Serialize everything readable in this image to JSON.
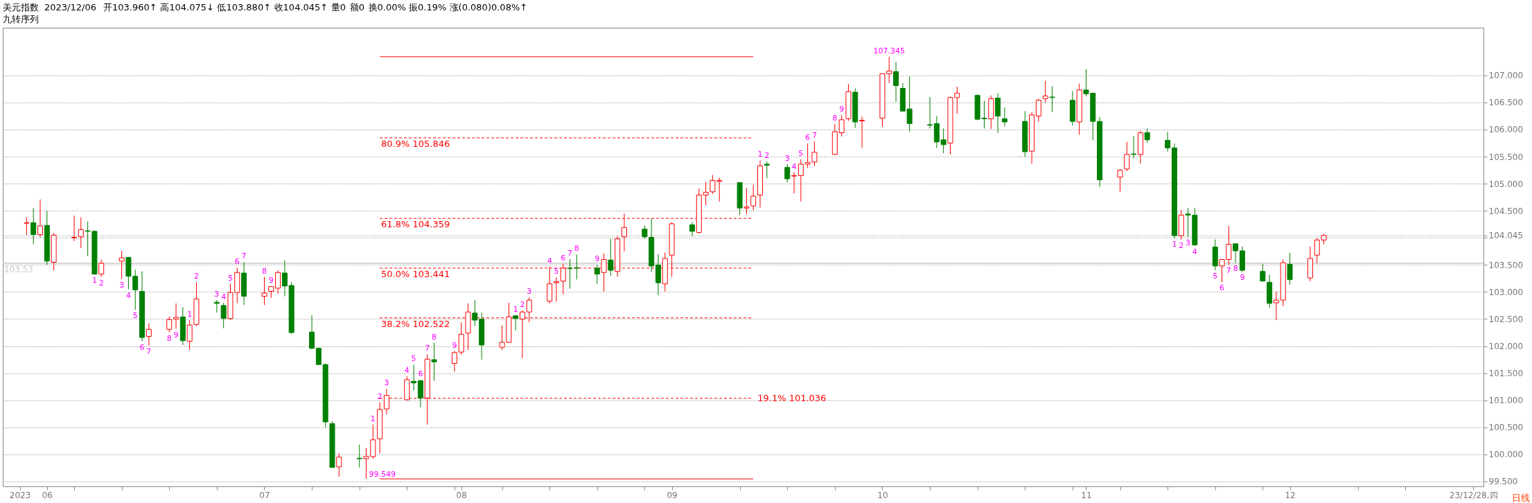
{
  "chart_data": {
    "type": "candlestick",
    "title": "美元指数",
    "subtitle": "九转序列",
    "xlabel": "日线",
    "xlim": [
      "2023-05-26",
      "2023-12-29"
    ],
    "ylim": [
      99.41,
      107.88
    ],
    "grid": "y",
    "xticks": [
      {
        "value": "2023-05-28",
        "label": "2023"
      },
      {
        "value": "2023-06-01",
        "label": "06"
      },
      {
        "value": "2023-06-05",
        "label": null
      },
      {
        "value": "2023-06-12",
        "label": null
      },
      {
        "value": "2023-06-19",
        "label": null
      },
      {
        "value": "2023-06-26",
        "label": null
      },
      {
        "value": "2023-07-03",
        "label": "07"
      },
      {
        "value": "2023-07-10",
        "label": null
      },
      {
        "value": "2023-07-17",
        "label": null
      },
      {
        "value": "2023-07-24",
        "label": null
      },
      {
        "value": "2023-07-31",
        "label": null
      },
      {
        "value": "2023-08-01",
        "label": "08"
      },
      {
        "value": "2023-08-07",
        "label": null
      },
      {
        "value": "2023-08-14",
        "label": null
      },
      {
        "value": "2023-08-21",
        "label": null
      },
      {
        "value": "2023-08-28",
        "label": null
      },
      {
        "value": "2023-09-01",
        "label": "09"
      },
      {
        "value": "2023-09-11",
        "label": null
      },
      {
        "value": "2023-09-18",
        "label": null
      },
      {
        "value": "2023-09-25",
        "label": null
      },
      {
        "value": "2023-10-02",
        "label": "10"
      },
      {
        "value": "2023-10-09",
        "label": null
      },
      {
        "value": "2023-10-16",
        "label": null
      },
      {
        "value": "2023-10-23",
        "label": null
      },
      {
        "value": "2023-10-30",
        "label": null
      },
      {
        "value": "2023-11-01",
        "label": "11"
      },
      {
        "value": "2023-11-06",
        "label": null
      },
      {
        "value": "2023-11-13",
        "label": null
      },
      {
        "value": "2023-11-20",
        "label": null
      },
      {
        "value": "2023-11-27",
        "label": null
      },
      {
        "value": "2023-12-01",
        "label": "12"
      },
      {
        "value": "2023-12-11",
        "label": null
      },
      {
        "value": "2023-12-18",
        "label": null
      },
      {
        "value": "2023-12-28",
        "label": "23/12/28,四"
      }
    ],
    "yticks": [
      {
        "value": 99.5,
        "label": "99.500"
      },
      {
        "value": 100,
        "label": "100.000"
      },
      {
        "value": 100.5,
        "label": "100.500"
      },
      {
        "value": 101,
        "label": "101.000"
      },
      {
        "value": 101.5,
        "label": "101.500"
      },
      {
        "value": 102,
        "label": "102.000"
      },
      {
        "value": 102.5,
        "label": "102.500"
      },
      {
        "value": 103,
        "label": "103.000"
      },
      {
        "value": 103.5,
        "label": "103.500"
      },
      {
        "value": 104,
        "label": null
      },
      {
        "value": 104.045,
        "label": "104.045"
      },
      {
        "value": 104.5,
        "label": "104.500"
      },
      {
        "value": 105,
        "label": "105.000"
      },
      {
        "value": 105.5,
        "label": "105.500"
      },
      {
        "value": 106,
        "label": "106.000"
      },
      {
        "value": 106.5,
        "label": "106.500"
      },
      {
        "value": 107,
        "label": "107.000"
      }
    ],
    "x": [
      "2023-05-29",
      "2023-05-30",
      "2023-05-31",
      "2023-06-01",
      "2023-06-02",
      "2023-06-05",
      "2023-06-06",
      "2023-06-07",
      "2023-06-08",
      "2023-06-09",
      "2023-06-12",
      "2023-06-13",
      "2023-06-14",
      "2023-06-15",
      "2023-06-16",
      "2023-06-19",
      "2023-06-20",
      "2023-06-21",
      "2023-06-22",
      "2023-06-23",
      "2023-06-26",
      "2023-06-27",
      "2023-06-28",
      "2023-06-29",
      "2023-06-30",
      "2023-07-03",
      "2023-07-04",
      "2023-07-05",
      "2023-07-06",
      "2023-07-07",
      "2023-07-10",
      "2023-07-11",
      "2023-07-12",
      "2023-07-13",
      "2023-07-14",
      "2023-07-17",
      "2023-07-18",
      "2023-07-19",
      "2023-07-20",
      "2023-07-21",
      "2023-07-24",
      "2023-07-25",
      "2023-07-26",
      "2023-07-27",
      "2023-07-28",
      "2023-07-31",
      "2023-08-01",
      "2023-08-02",
      "2023-08-03",
      "2023-08-04",
      "2023-08-07",
      "2023-08-08",
      "2023-08-09",
      "2023-08-10",
      "2023-08-11",
      "2023-08-14",
      "2023-08-15",
      "2023-08-16",
      "2023-08-17",
      "2023-08-18",
      "2023-08-21",
      "2023-08-22",
      "2023-08-23",
      "2023-08-24",
      "2023-08-25",
      "2023-08-28",
      "2023-08-29",
      "2023-08-30",
      "2023-08-31",
      "2023-09-01",
      "2023-09-04",
      "2023-09-05",
      "2023-09-06",
      "2023-09-07",
      "2023-09-08",
      "2023-09-11",
      "2023-09-12",
      "2023-09-13",
      "2023-09-14",
      "2023-09-15",
      "2023-09-18",
      "2023-09-19",
      "2023-09-20",
      "2023-09-21",
      "2023-09-22",
      "2023-09-25",
      "2023-09-26",
      "2023-09-27",
      "2023-09-28",
      "2023-09-29",
      "2023-10-02",
      "2023-10-03",
      "2023-10-04",
      "2023-10-05",
      "2023-10-06",
      "2023-10-09",
      "2023-10-10",
      "2023-10-11",
      "2023-10-12",
      "2023-10-13",
      "2023-10-16",
      "2023-10-17",
      "2023-10-18",
      "2023-10-19",
      "2023-10-20",
      "2023-10-23",
      "2023-10-24",
      "2023-10-25",
      "2023-10-26",
      "2023-10-27",
      "2023-10-30",
      "2023-10-31",
      "2023-11-01",
      "2023-11-02",
      "2023-11-03",
      "2023-11-06",
      "2023-11-07",
      "2023-11-08",
      "2023-11-09",
      "2023-11-10",
      "2023-11-13",
      "2023-11-14",
      "2023-11-15",
      "2023-11-16",
      "2023-11-17",
      "2023-11-20",
      "2023-11-21",
      "2023-11-22",
      "2023-11-23",
      "2023-11-24",
      "2023-11-27",
      "2023-11-28",
      "2023-11-29",
      "2023-11-30",
      "2023-12-01",
      "2023-12-04",
      "2023-12-05",
      "2023-12-06"
    ],
    "ohlc": [
      [
        104.27,
        104.38,
        104.05,
        104.28
      ],
      [
        104.28,
        104.55,
        103.88,
        104.06
      ],
      [
        104.06,
        104.71,
        104.01,
        104.22
      ],
      [
        104.23,
        104.5,
        103.5,
        103.57
      ],
      [
        103.55,
        104.09,
        103.4,
        104.05
      ],
      [
        104.0,
        104.41,
        103.94,
        104.01
      ],
      [
        104.02,
        104.38,
        103.81,
        104.15
      ],
      [
        104.13,
        104.3,
        103.66,
        104.12
      ],
      [
        104.12,
        104.14,
        103.32,
        103.33
      ],
      [
        103.33,
        103.6,
        103.28,
        103.53
      ],
      [
        103.57,
        103.76,
        103.24,
        103.63
      ],
      [
        103.64,
        103.64,
        103.05,
        103.29
      ],
      [
        103.29,
        103.41,
        102.67,
        103.04
      ],
      [
        103.01,
        103.38,
        102.09,
        102.16
      ],
      [
        102.18,
        102.42,
        102.01,
        102.31
      ],
      [
        102.31,
        102.55,
        102.25,
        102.49
      ],
      [
        102.5,
        102.79,
        102.32,
        102.53
      ],
      [
        102.54,
        102.72,
        102.02,
        102.1
      ],
      [
        102.09,
        102.48,
        101.93,
        102.39
      ],
      [
        102.4,
        103.18,
        102.37,
        102.87
      ],
      [
        102.81,
        102.85,
        102.62,
        102.79
      ],
      [
        102.75,
        102.8,
        102.33,
        102.51
      ],
      [
        102.51,
        103.15,
        102.48,
        102.99
      ],
      [
        102.99,
        103.45,
        102.79,
        103.36
      ],
      [
        103.35,
        103.55,
        102.76,
        102.92
      ],
      [
        102.92,
        103.28,
        102.76,
        102.98
      ],
      [
        103.01,
        103.11,
        102.89,
        103.1
      ],
      [
        103.07,
        103.4,
        102.97,
        103.36
      ],
      [
        103.35,
        103.58,
        102.92,
        103.11
      ],
      [
        103.12,
        103.18,
        102.23,
        102.25
      ],
      [
        102.26,
        102.57,
        101.94,
        101.96
      ],
      [
        101.96,
        101.97,
        101.65,
        101.66
      ],
      [
        101.66,
        101.68,
        100.5,
        100.6
      ],
      [
        100.57,
        100.61,
        99.75,
        99.76
      ],
      [
        99.77,
        100.02,
        99.59,
        99.95
      ],
      [
        99.93,
        100.18,
        99.76,
        99.92
      ],
      [
        99.92,
        100.12,
        99.549,
        99.96
      ],
      [
        99.96,
        100.55,
        99.92,
        100.27
      ],
      [
        100.29,
        100.96,
        100.02,
        100.83
      ],
      [
        100.84,
        101.21,
        100.74,
        101.09
      ],
      [
        101.01,
        101.44,
        101.0,
        101.38
      ],
      [
        101.35,
        101.66,
        101.18,
        101.32
      ],
      [
        101.36,
        101.38,
        100.87,
        101.04
      ],
      [
        101.04,
        101.85,
        100.55,
        101.76
      ],
      [
        101.75,
        102.06,
        101.36,
        101.71
      ],
      [
        101.68,
        101.91,
        101.53,
        101.88
      ],
      [
        101.89,
        102.44,
        101.84,
        102.22
      ],
      [
        102.24,
        102.79,
        101.93,
        102.63
      ],
      [
        102.61,
        102.85,
        102.37,
        102.48
      ],
      [
        102.5,
        102.62,
        101.75,
        102.02
      ],
      [
        101.98,
        102.38,
        101.93,
        102.07
      ],
      [
        102.07,
        102.8,
        102.06,
        102.54
      ],
      [
        102.56,
        102.57,
        102.29,
        102.51
      ],
      [
        102.5,
        102.66,
        101.78,
        102.63
      ],
      [
        102.63,
        102.9,
        102.44,
        102.85
      ],
      [
        102.83,
        103.47,
        102.79,
        103.15
      ],
      [
        103.17,
        103.27,
        102.82,
        103.19
      ],
      [
        103.2,
        103.52,
        102.96,
        103.44
      ],
      [
        103.44,
        103.61,
        103.06,
        103.43
      ],
      [
        103.45,
        103.69,
        103.23,
        103.44
      ],
      [
        103.44,
        103.5,
        103.15,
        103.33
      ],
      [
        103.36,
        103.71,
        103.01,
        103.6
      ],
      [
        103.59,
        103.98,
        103.3,
        103.4
      ],
      [
        103.38,
        104.03,
        103.28,
        103.98
      ],
      [
        104.02,
        104.45,
        103.75,
        104.19
      ],
      [
        104.16,
        104.23,
        103.98,
        104.02
      ],
      [
        104.01,
        104.36,
        103.37,
        103.48
      ],
      [
        103.5,
        103.7,
        102.94,
        103.17
      ],
      [
        103.15,
        103.73,
        103.01,
        103.62
      ],
      [
        103.68,
        104.29,
        103.28,
        104.26
      ],
      [
        104.24,
        104.29,
        104.03,
        104.12
      ],
      [
        104.1,
        104.91,
        104.08,
        104.79
      ],
      [
        104.79,
        105.03,
        104.6,
        104.84
      ],
      [
        104.85,
        105.16,
        104.81,
        105.06
      ],
      [
        105.04,
        105.11,
        104.67,
        105.06
      ],
      [
        105.02,
        105.03,
        104.42,
        104.55
      ],
      [
        104.55,
        104.92,
        104.44,
        104.57
      ],
      [
        104.59,
        104.98,
        104.51,
        104.77
      ],
      [
        104.79,
        105.43,
        104.56,
        105.33
      ],
      [
        105.36,
        105.41,
        105.1,
        105.34
      ],
      [
        105.3,
        105.36,
        105.02,
        105.09
      ],
      [
        105.14,
        105.21,
        104.82,
        105.15
      ],
      [
        105.15,
        105.45,
        104.67,
        105.36
      ],
      [
        105.36,
        105.74,
        105.29,
        105.39
      ],
      [
        105.4,
        105.78,
        105.32,
        105.58
      ],
      [
        105.54,
        106.1,
        105.53,
        105.96
      ],
      [
        105.94,
        106.27,
        105.87,
        106.18
      ],
      [
        106.2,
        106.84,
        106.16,
        106.7
      ],
      [
        106.69,
        106.76,
        106.03,
        106.14
      ],
      [
        106.16,
        106.24,
        105.66,
        106.17
      ],
      [
        106.21,
        107.03,
        106.05,
        107.03
      ],
      [
        107.03,
        107.345,
        106.86,
        107.08
      ],
      [
        107.07,
        107.25,
        106.51,
        106.81
      ],
      [
        106.76,
        106.86,
        106.33,
        106.34
      ],
      [
        106.38,
        106.98,
        105.96,
        106.11
      ],
      [
        106.09,
        106.6,
        106.02,
        106.08
      ],
      [
        106.11,
        106.25,
        105.66,
        105.77
      ],
      [
        105.81,
        106.02,
        105.56,
        105.72
      ],
      [
        105.75,
        106.61,
        105.54,
        106.59
      ],
      [
        106.59,
        106.79,
        106.29,
        106.67
      ],
      [
        106.63,
        106.65,
        106.17,
        106.19
      ],
      [
        106.21,
        106.53,
        106.02,
        106.2
      ],
      [
        106.2,
        106.63,
        106.01,
        106.57
      ],
      [
        106.58,
        106.67,
        105.94,
        106.25
      ],
      [
        106.2,
        106.41,
        106.06,
        106.14
      ],
      [
        106.15,
        106.34,
        105.5,
        105.59
      ],
      [
        105.6,
        106.32,
        105.37,
        106.27
      ],
      [
        106.25,
        106.57,
        106.14,
        106.54
      ],
      [
        106.57,
        106.9,
        106.5,
        106.62
      ],
      [
        106.6,
        106.8,
        106.32,
        106.59
      ],
      [
        106.54,
        106.71,
        106.07,
        106.15
      ],
      [
        106.14,
        106.85,
        105.9,
        106.73
      ],
      [
        106.73,
        107.11,
        106.61,
        106.66
      ],
      [
        106.67,
        106.68,
        105.8,
        106.15
      ],
      [
        106.15,
        106.23,
        104.94,
        105.07
      ],
      [
        105.12,
        105.27,
        104.85,
        105.25
      ],
      [
        105.27,
        105.77,
        105.23,
        105.54
      ],
      [
        105.55,
        105.88,
        105.46,
        105.54
      ],
      [
        105.54,
        105.97,
        105.37,
        105.94
      ],
      [
        105.94,
        106.02,
        105.75,
        105.81
      ],
      [
        105.8,
        105.96,
        105.59,
        105.66
      ],
      [
        105.66,
        105.74,
        103.99,
        104.04
      ],
      [
        104.04,
        104.51,
        103.97,
        104.42
      ],
      [
        104.44,
        104.55,
        104.01,
        104.42
      ],
      [
        104.42,
        104.55,
        103.85,
        103.87
      ],
      [
        103.83,
        103.97,
        103.4,
        103.48
      ],
      [
        103.48,
        103.61,
        103.18,
        103.6
      ],
      [
        103.6,
        104.22,
        103.5,
        103.88
      ],
      [
        103.89,
        103.9,
        103.54,
        103.76
      ],
      [
        103.76,
        103.84,
        103.37,
        103.4
      ],
      [
        103.38,
        103.52,
        103.2,
        103.2
      ],
      [
        103.18,
        103.32,
        102.71,
        102.79
      ],
      [
        102.8,
        103.01,
        102.48,
        102.85
      ],
      [
        102.85,
        103.6,
        102.74,
        103.54
      ],
      [
        103.51,
        103.72,
        103.13,
        103.23
      ],
      [
        103.26,
        103.84,
        103.2,
        103.62
      ],
      [
        103.68,
        104.0,
        103.53,
        103.96
      ],
      [
        103.96,
        104.075,
        103.88,
        104.045
      ]
    ],
    "colors": [
      "#ff0000",
      "#008000",
      "#ff0000",
      "#008000",
      "#ff0000",
      "#ff0000",
      "#ff0000",
      "#008000",
      "#008000",
      "#ff0000",
      "#ff0000",
      "#008000",
      "#008000",
      "#008000",
      "#ff0000",
      "#ff0000",
      "#ff0000",
      "#008000",
      "#ff0000",
      "#ff0000",
      "#008000",
      "#008000",
      "#ff0000",
      "#ff0000",
      "#008000",
      "#ff0000",
      "#ff0000",
      "#ff0000",
      "#008000",
      "#008000",
      "#008000",
      "#008000",
      "#008000",
      "#008000",
      "#ff0000",
      "#008000",
      "#ff0000",
      "#ff0000",
      "#ff0000",
      "#ff0000",
      "#ff0000",
      "#008000",
      "#008000",
      "#ff0000",
      "#008000",
      "#ff0000",
      "#ff0000",
      "#ff0000",
      "#008000",
      "#008000",
      "#ff0000",
      "#ff0000",
      "#008000",
      "#ff0000",
      "#ff0000",
      "#ff0000",
      "#ff0000",
      "#ff0000",
      "#008000",
      "#008000",
      "#008000",
      "#ff0000",
      "#008000",
      "#ff0000",
      "#ff0000",
      "#008000",
      "#008000",
      "#008000",
      "#ff0000",
      "#ff0000",
      "#008000",
      "#ff0000",
      "#ff0000",
      "#ff0000",
      "#ff0000",
      "#008000",
      "#ff0000",
      "#ff0000",
      "#ff0000",
      "#008000",
      "#008000",
      "#ff0000",
      "#ff0000",
      "#ff0000",
      "#ff0000",
      "#ff0000",
      "#ff0000",
      "#ff0000",
      "#008000",
      "#ff0000",
      "#ff0000",
      "#ff0000",
      "#008000",
      "#008000",
      "#008000",
      "#008000",
      "#008000",
      "#008000",
      "#ff0000",
      "#ff0000",
      "#008000",
      "#008000",
      "#ff0000",
      "#008000",
      "#008000",
      "#008000",
      "#ff0000",
      "#ff0000",
      "#ff0000",
      "#008000",
      "#008000",
      "#ff0000",
      "#008000",
      "#008000",
      "#008000",
      "#ff0000",
      "#ff0000",
      "#008000",
      "#ff0000",
      "#008000",
      "#008000",
      "#008000",
      "#ff0000",
      "#008000",
      "#008000",
      "#008000",
      "#ff0000",
      "#ff0000",
      "#008000",
      "#008000",
      "#008000",
      "#008000",
      "#ff0000",
      "#ff0000",
      "#008000",
      "#ff0000",
      "#ff0000",
      "#ff0000"
    ],
    "series": [
      {
        "type": "line",
        "x": [
          "2023-07-20",
          "2023-09-13"
        ],
        "values": [
          107.345,
          107.345
        ],
        "color": "#ff0000",
        "line_style": "solid"
      },
      {
        "type": "line",
        "name": "80.9% 105.846",
        "x": [
          "2023-07-20",
          "2023-09-13"
        ],
        "values": [
          105.846,
          105.846
        ],
        "color": "#ff0000",
        "line_style": "dashed"
      },
      {
        "type": "line",
        "name": "61.8% 104.359",
        "x": [
          "2023-07-20",
          "2023-09-13"
        ],
        "values": [
          104.359,
          104.359
        ],
        "color": "#ff0000",
        "line_style": "dashed"
      },
      {
        "type": "line",
        "name": "50.0% 103.441",
        "x": [
          "2023-07-20",
          "2023-09-13"
        ],
        "values": [
          103.441,
          103.441
        ],
        "color": "#ff0000",
        "line_style": "dashed"
      },
      {
        "type": "line",
        "name": "38.2% 102.522",
        "x": [
          "2023-07-20",
          "2023-09-13"
        ],
        "values": [
          102.522,
          102.522
        ],
        "color": "#ff0000",
        "line_style": "dashed"
      },
      {
        "type": "line",
        "name": "19.1% 101.036",
        "x": [
          "2023-07-20",
          "2023-09-13"
        ],
        "values": [
          101.036,
          101.036
        ],
        "color": "#ff0000",
        "line_style": "dashed"
      },
      {
        "type": "line",
        "x": [
          "2023-07-20",
          "2023-09-13"
        ],
        "values": [
          99.549,
          99.549
        ],
        "color": "#ff0000",
        "line_style": "solid"
      }
    ],
    "ref_lines": [
      {
        "axis": "y",
        "value": 103.53,
        "label": "103.53",
        "color": "#c8c8c8"
      }
    ],
    "annotations": [
      "2023/12/06",
      "开103.960↑",
      "高104.075↓",
      "低103.880↑",
      "收104.045↑",
      "量0",
      "额0",
      "换0.00%",
      "振0.19%",
      "涨(0.080)0.08%↑",
      {
        "text": "107.345",
        "x": "2023-10-03",
        "y": 107.345
      },
      {
        "text": "99.549",
        "x": "2023-07-18",
        "y": 99.549
      },
      {
        "text": "1",
        "x": "2023-06-22",
        "y": 102.48
      },
      {
        "text": "2",
        "x": "2023-06-23",
        "y": 103.18
      },
      {
        "text": "3",
        "x": "2023-06-26",
        "y": 102.85
      },
      {
        "text": "4",
        "x": "2023-06-27",
        "y": 102.8
      },
      {
        "text": "5",
        "x": "2023-06-28",
        "y": 103.15
      },
      {
        "text": "6",
        "x": "2023-06-29",
        "y": 103.45
      },
      {
        "text": "7",
        "x": "2023-06-30",
        "y": 103.55
      },
      {
        "text": "8",
        "x": "2023-07-03",
        "y": 103.28
      },
      {
        "text": "9",
        "x": "2023-07-04",
        "y": 103.11
      },
      {
        "text": "1",
        "x": "2023-06-08",
        "y": 103.32
      },
      {
        "text": "2",
        "x": "2023-06-09",
        "y": 103.28
      },
      {
        "text": "3",
        "x": "2023-06-12",
        "y": 103.24
      },
      {
        "text": "4",
        "x": "2023-06-13",
        "y": 103.05
      },
      {
        "text": "5",
        "x": "2023-06-14",
        "y": 102.67
      },
      {
        "text": "6",
        "x": "2023-06-15",
        "y": 102.09
      },
      {
        "text": "7",
        "x": "2023-06-16",
        "y": 102.01
      },
      {
        "text": "8",
        "x": "2023-06-19",
        "y": 102.25
      },
      {
        "text": "9",
        "x": "2023-06-20",
        "y": 102.32
      },
      {
        "text": "1",
        "x": "2023-07-19",
        "y": 100.55
      },
      {
        "text": "2",
        "x": "2023-07-20",
        "y": 100.96
      },
      {
        "text": "3",
        "x": "2023-07-21",
        "y": 101.21
      },
      {
        "text": "4",
        "x": "2023-07-24",
        "y": 101.44
      },
      {
        "text": "5",
        "x": "2023-07-25",
        "y": 101.66
      },
      {
        "text": "6",
        "x": "2023-07-26",
        "y": 101.38
      },
      {
        "text": "7",
        "x": "2023-07-27",
        "y": 101.85
      },
      {
        "text": "8",
        "x": "2023-07-28",
        "y": 102.06
      },
      {
        "text": "9",
        "x": "2023-07-31",
        "y": 101.91
      },
      {
        "text": "1",
        "x": "2023-08-09",
        "y": 102.57
      },
      {
        "text": "2",
        "x": "2023-08-10",
        "y": 102.66
      },
      {
        "text": "3",
        "x": "2023-08-11",
        "y": 102.9
      },
      {
        "text": "4",
        "x": "2023-08-14",
        "y": 103.47
      },
      {
        "text": "5",
        "x": "2023-08-15",
        "y": 103.27
      },
      {
        "text": "6",
        "x": "2023-08-16",
        "y": 103.52
      },
      {
        "text": "7",
        "x": "2023-08-17",
        "y": 103.61
      },
      {
        "text": "8",
        "x": "2023-08-18",
        "y": 103.69
      },
      {
        "text": "9",
        "x": "2023-08-21",
        "y": 103.5
      },
      {
        "text": "1",
        "x": "2023-09-14",
        "y": 105.43
      },
      {
        "text": "2",
        "x": "2023-09-15",
        "y": 105.41
      },
      {
        "text": "3",
        "x": "2023-09-18",
        "y": 105.36
      },
      {
        "text": "4",
        "x": "2023-09-19",
        "y": 105.21
      },
      {
        "text": "5",
        "x": "2023-09-20",
        "y": 105.45
      },
      {
        "text": "6",
        "x": "2023-09-21",
        "y": 105.74
      },
      {
        "text": "7",
        "x": "2023-09-22",
        "y": 105.78
      },
      {
        "text": "8",
        "x": "2023-09-25",
        "y": 106.1
      },
      {
        "text": "9",
        "x": "2023-09-26",
        "y": 106.27
      },
      {
        "text": "1",
        "x": "2023-11-14",
        "y": 103.99
      },
      {
        "text": "2",
        "x": "2023-11-15",
        "y": 103.97
      },
      {
        "text": "3",
        "x": "2023-11-16",
        "y": 104.01
      },
      {
        "text": "4",
        "x": "2023-11-17",
        "y": 103.85
      },
      {
        "text": "5",
        "x": "2023-11-20",
        "y": 103.4
      },
      {
        "text": "6",
        "x": "2023-11-21",
        "y": 103.18
      },
      {
        "text": "7",
        "x": "2023-11-22",
        "y": 103.5
      },
      {
        "text": "8",
        "x": "2023-11-23",
        "y": 103.54
      },
      {
        "text": "9",
        "x": "2023-11-24",
        "y": 103.37
      }
    ]
  }
}
